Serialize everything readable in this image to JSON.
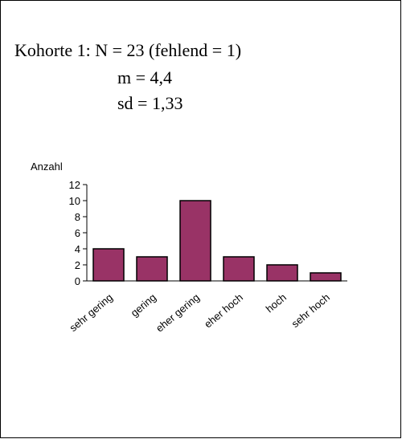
{
  "chart_data": {
    "type": "bar",
    "annotations": [
      "Kohorte 1: N = 23 (fehlend = 1)",
      "m = 4,4",
      "sd = 1,33"
    ],
    "y_label": "Anzahl",
    "categories": [
      "sehr gering",
      "gering",
      "eher gering",
      "eher hoch",
      "hoch",
      "sehr hoch"
    ],
    "values": [
      4,
      3,
      10,
      3,
      2,
      1
    ],
    "color": "#993366",
    "ylim": [
      0,
      12
    ],
    "yticks": [
      0,
      2,
      4,
      6,
      8,
      10,
      12
    ],
    "grid": false
  }
}
